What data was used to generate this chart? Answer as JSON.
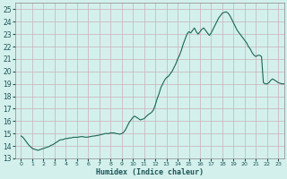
{
  "title": "",
  "xlabel": "Humidex (Indice chaleur)",
  "ylabel": "",
  "xlim": [
    -0.5,
    23.5
  ],
  "ylim": [
    13,
    25.5
  ],
  "yticks": [
    13,
    14,
    15,
    16,
    17,
    18,
    19,
    20,
    21,
    22,
    23,
    24,
    25
  ],
  "xticks": [
    0,
    1,
    2,
    3,
    4,
    5,
    6,
    7,
    8,
    9,
    10,
    11,
    12,
    13,
    14,
    15,
    16,
    17,
    18,
    19,
    20,
    21,
    22,
    23
  ],
  "bg_color": "#d4f0ec",
  "grid_color": "#c8b0b8",
  "line_color": "#1a6655",
  "x": [
    0.0,
    0.167,
    0.333,
    0.5,
    0.667,
    0.833,
    1.0,
    1.167,
    1.333,
    1.5,
    1.667,
    1.833,
    2.0,
    2.167,
    2.333,
    2.5,
    2.667,
    2.833,
    3.0,
    3.167,
    3.333,
    3.5,
    3.667,
    3.833,
    4.0,
    4.167,
    4.333,
    4.5,
    4.667,
    4.833,
    5.0,
    5.167,
    5.333,
    5.5,
    5.667,
    5.833,
    6.0,
    6.167,
    6.333,
    6.5,
    6.667,
    6.833,
    7.0,
    7.167,
    7.333,
    7.5,
    7.667,
    7.833,
    8.0,
    8.167,
    8.333,
    8.5,
    8.667,
    8.833,
    9.0,
    9.167,
    9.333,
    9.5,
    9.667,
    9.833,
    10.0,
    10.167,
    10.333,
    10.5,
    10.667,
    10.833,
    11.0,
    11.167,
    11.333,
    11.5,
    11.667,
    11.833,
    12.0,
    12.167,
    12.333,
    12.5,
    12.667,
    12.833,
    13.0,
    13.167,
    13.333,
    13.5,
    13.667,
    13.833,
    14.0,
    14.167,
    14.333,
    14.5,
    14.667,
    14.833,
    15.0,
    15.167,
    15.333,
    15.5,
    15.667,
    15.833,
    16.0,
    16.167,
    16.333,
    16.5,
    16.667,
    16.833,
    17.0,
    17.167,
    17.333,
    17.5,
    17.667,
    17.833,
    18.0,
    18.167,
    18.333,
    18.5,
    18.667,
    18.833,
    19.0,
    19.167,
    19.333,
    19.5,
    19.667,
    19.833,
    20.0,
    20.167,
    20.333,
    20.5,
    20.667,
    20.833,
    21.0,
    21.167,
    21.333,
    21.5,
    21.667,
    21.833,
    22.0,
    22.167,
    22.333,
    22.5,
    22.667,
    22.833,
    23.0,
    23.167,
    23.333,
    23.5,
    23.667,
    23.833
  ],
  "y": [
    14.8,
    14.7,
    14.5,
    14.3,
    14.1,
    13.95,
    13.8,
    13.75,
    13.7,
    13.65,
    13.7,
    13.75,
    13.8,
    13.85,
    13.9,
    13.95,
    14.05,
    14.1,
    14.2,
    14.3,
    14.4,
    14.5,
    14.5,
    14.55,
    14.6,
    14.6,
    14.65,
    14.65,
    14.7,
    14.7,
    14.7,
    14.72,
    14.75,
    14.75,
    14.72,
    14.7,
    14.72,
    14.75,
    14.78,
    14.8,
    14.82,
    14.85,
    14.88,
    14.92,
    14.95,
    15.0,
    15.0,
    15.0,
    15.05,
    15.05,
    15.05,
    15.0,
    14.98,
    14.95,
    15.0,
    15.1,
    15.3,
    15.6,
    15.9,
    16.1,
    16.3,
    16.4,
    16.3,
    16.2,
    16.1,
    16.15,
    16.2,
    16.35,
    16.5,
    16.6,
    16.7,
    16.9,
    17.3,
    17.8,
    18.2,
    18.7,
    19.0,
    19.3,
    19.5,
    19.6,
    19.8,
    20.0,
    20.3,
    20.6,
    21.0,
    21.3,
    21.7,
    22.2,
    22.6,
    23.0,
    23.2,
    23.1,
    23.3,
    23.5,
    23.2,
    23.0,
    23.2,
    23.4,
    23.5,
    23.3,
    23.1,
    22.9,
    23.1,
    23.4,
    23.7,
    24.0,
    24.3,
    24.5,
    24.7,
    24.75,
    24.8,
    24.7,
    24.5,
    24.2,
    23.9,
    23.6,
    23.3,
    23.1,
    22.9,
    22.7,
    22.5,
    22.3,
    22.0,
    21.8,
    21.5,
    21.3,
    21.2,
    21.3,
    21.3,
    21.2,
    19.1,
    19.0,
    19.0,
    19.1,
    19.3,
    19.4,
    19.3,
    19.2,
    19.1,
    19.05,
    19.0,
    19.0,
    19.05,
    19.0
  ]
}
